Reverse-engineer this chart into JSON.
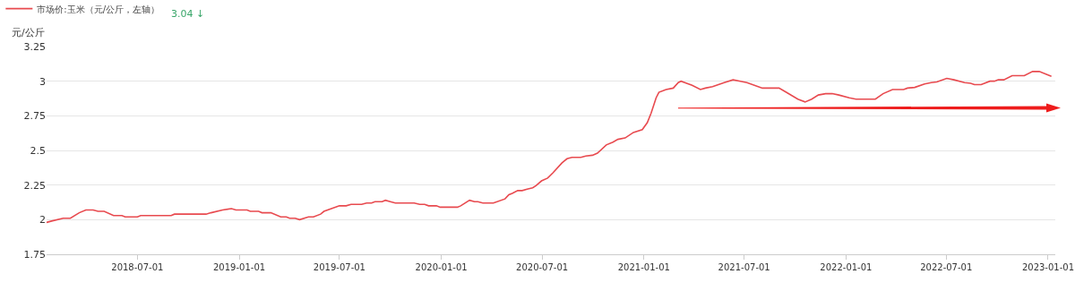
{
  "chart_data": {
    "type": "line",
    "ylabel": "元/公斤",
    "annotations": [
      "3.04 ↓"
    ],
    "xlim": [
      "2018-01-18",
      "2023-01-14"
    ],
    "xticks": [
      "2018-07-01",
      "2019-01-01",
      "2019-07-01",
      "2020-01-01",
      "2020-07-01",
      "2021-01-01",
      "2021-07-01",
      "2022-01-01",
      "2022-07-01",
      "2023-01-01"
    ],
    "ylim": [
      1.75,
      3.25
    ],
    "yticks": [
      1.75,
      2,
      2.25,
      2.5,
      2.75,
      3,
      3.25
    ],
    "grid": "y",
    "legend": "top left",
    "marker": "none",
    "line_style": "solid",
    "x": [
      "2018-01-18",
      "2018-01-27",
      "2018-02-17",
      "2018-03-02",
      "2018-03-18",
      "2018-03-30",
      "2018-04-12",
      "2018-04-21",
      "2018-05-02",
      "2018-05-19",
      "2018-06-03",
      "2018-06-09",
      "2018-07-01",
      "2018-07-07",
      "2018-08-31",
      "2018-09-06",
      "2018-11-02",
      "2018-11-11",
      "2018-12-02",
      "2018-12-18",
      "2018-12-26",
      "2019-01-15",
      "2019-01-21",
      "2019-02-05",
      "2019-02-11",
      "2019-02-27",
      "2019-03-17",
      "2019-03-27",
      "2019-04-02",
      "2019-04-12",
      "2019-04-20",
      "2019-05-06",
      "2019-05-15",
      "2019-05-28",
      "2019-06-03",
      "2019-07-01",
      "2019-07-13",
      "2019-07-22",
      "2019-08-10",
      "2019-08-19",
      "2019-08-28",
      "2019-09-03",
      "2019-09-16",
      "2019-09-22",
      "2019-10-01",
      "2019-10-10",
      "2019-11-13",
      "2019-11-23",
      "2019-12-02",
      "2019-12-09",
      "2019-12-23",
      "2019-12-30",
      "2020-01-30",
      "2020-02-05",
      "2020-02-21",
      "2020-03-01",
      "2020-03-07",
      "2020-03-16",
      "2020-04-04",
      "2020-04-25",
      "2020-05-02",
      "2020-05-08",
      "2020-05-18",
      "2020-05-26",
      "2020-06-04",
      "2020-06-14",
      "2020-06-20",
      "2020-06-30",
      "2020-07-11",
      "2020-07-21",
      "2020-08-06",
      "2020-08-15",
      "2020-08-24",
      "2020-09-09",
      "2020-09-18",
      "2020-09-30",
      "2020-10-09",
      "2020-10-25",
      "2020-11-06",
      "2020-11-15",
      "2020-11-28",
      "2020-12-13",
      "2020-12-29",
      "2021-01-07",
      "2021-01-14",
      "2021-01-23",
      "2021-01-28",
      "2021-02-10",
      "2021-02-23",
      "2021-03-04",
      "2021-03-09",
      "2021-03-29",
      "2021-04-13",
      "2021-04-22",
      "2021-05-05",
      "2021-05-26",
      "2021-06-11",
      "2021-06-24",
      "2021-07-06",
      "2021-08-03",
      "2021-09-02",
      "2021-09-15",
      "2021-10-06",
      "2021-10-19",
      "2021-10-31",
      "2021-11-12",
      "2021-11-25",
      "2021-12-07",
      "2021-12-19",
      "2022-01-07",
      "2022-01-19",
      "2022-02-23",
      "2022-03-09",
      "2022-03-26",
      "2022-04-15",
      "2022-04-22",
      "2022-05-05",
      "2022-05-23",
      "2022-06-04",
      "2022-06-14",
      "2022-07-02",
      "2022-07-15",
      "2022-08-03",
      "2022-08-14",
      "2022-08-21",
      "2022-09-02",
      "2022-09-18",
      "2022-09-26",
      "2022-10-03",
      "2022-10-13",
      "2022-10-28",
      "2022-11-19",
      "2022-12-04",
      "2022-12-16",
      "2023-01-07"
    ],
    "series": [
      {
        "name": "市场价:玉米（元/公斤，左轴）",
        "color": "#e84a4f",
        "values": [
          1.98,
          1.99,
          2.01,
          2.01,
          2.05,
          2.07,
          2.07,
          2.06,
          2.06,
          2.03,
          2.03,
          2.02,
          2.02,
          2.03,
          2.03,
          2.04,
          2.04,
          2.05,
          2.07,
          2.08,
          2.07,
          2.07,
          2.06,
          2.06,
          2.05,
          2.05,
          2.02,
          2.02,
          2.01,
          2.01,
          2.0,
          2.02,
          2.02,
          2.04,
          2.06,
          2.1,
          2.1,
          2.11,
          2.11,
          2.12,
          2.12,
          2.13,
          2.13,
          2.14,
          2.13,
          2.12,
          2.12,
          2.11,
          2.11,
          2.1,
          2.1,
          2.09,
          2.09,
          2.1,
          2.14,
          2.13,
          2.13,
          2.12,
          2.12,
          2.15,
          2.18,
          2.19,
          2.21,
          2.21,
          2.22,
          2.23,
          2.245,
          2.28,
          2.3,
          2.34,
          2.41,
          2.44,
          2.45,
          2.45,
          2.46,
          2.465,
          2.48,
          2.54,
          2.56,
          2.58,
          2.59,
          2.63,
          2.65,
          2.7,
          2.77,
          2.88,
          2.92,
          2.94,
          2.95,
          2.99,
          3.0,
          2.97,
          2.94,
          2.95,
          2.96,
          2.99,
          3.01,
          3.0,
          2.99,
          2.95,
          2.95,
          2.92,
          2.87,
          2.85,
          2.87,
          2.9,
          2.91,
          2.91,
          2.9,
          2.88,
          2.87,
          2.87,
          2.91,
          2.94,
          2.94,
          2.95,
          2.955,
          2.98,
          2.99,
          2.995,
          3.02,
          3.01,
          2.99,
          2.985,
          2.975,
          2.975,
          3.0,
          3.0,
          3.01,
          3.01,
          3.04,
          3.04,
          3.07,
          3.07,
          3.035
        ]
      }
    ]
  }
}
